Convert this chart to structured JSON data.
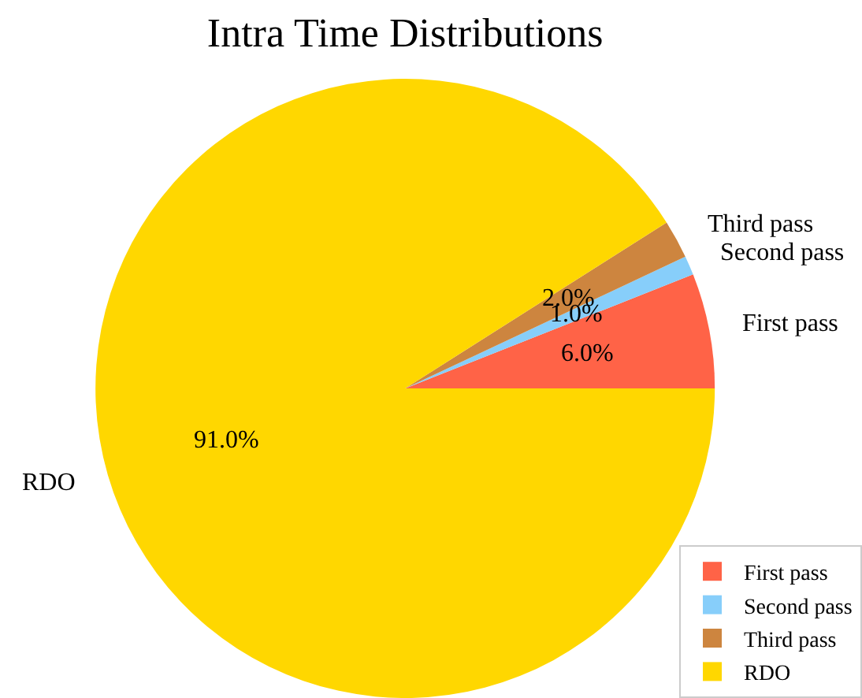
{
  "chart_data": {
    "type": "pie",
    "title": "Intra Time Distributions",
    "categories": [
      "First pass",
      "Second pass",
      "Third pass",
      "RDO"
    ],
    "values": [
      6,
      1,
      2,
      91
    ],
    "colors": [
      "#ff6347",
      "#87cefa",
      "#cd853f",
      "#ffd700"
    ],
    "value_labels": [
      "6.0%",
      "1.0%",
      "2.0%",
      "91.0%"
    ],
    "legend": "bottom right"
  }
}
